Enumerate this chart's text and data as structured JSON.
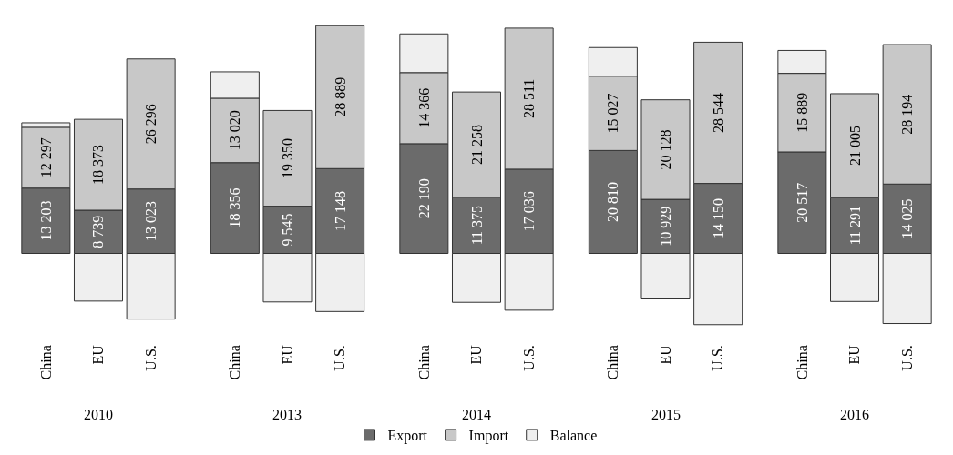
{
  "chart_data": {
    "type": "bar",
    "stacked": true,
    "categories": [
      "China",
      "EU",
      "U.S.",
      "China",
      "EU",
      "U.S.",
      "China",
      "EU",
      "U.S.",
      "China",
      "EU",
      "U.S.",
      "China",
      "EU",
      "U.S."
    ],
    "annotations": [
      "2010",
      "2013",
      "2014",
      "2015",
      "2016"
    ],
    "series": [
      {
        "name": "Export",
        "color": "#6b6b6b",
        "values": [
          13203,
          8739,
          13023,
          18356,
          9545,
          17148,
          22190,
          11375,
          17036,
          20810,
          10929,
          14150,
          20517,
          11291,
          14025
        ],
        "value_labels": [
          "13 203",
          "8 739",
          "13 023",
          "18 356",
          "9 545",
          "17 148",
          "22 190",
          "11 375",
          "17 036",
          "20 810",
          "10 929",
          "14 150",
          "20 517",
          "11 291",
          "14 025"
        ]
      },
      {
        "name": "Import",
        "color": "#c8c8c8",
        "values": [
          12297,
          18373,
          26296,
          13020,
          19350,
          28889,
          14366,
          21258,
          28511,
          15027,
          20128,
          28544,
          15889,
          21005,
          28194
        ],
        "value_labels": [
          "12 297",
          "18 373",
          "26 296",
          "13 020",
          "19 350",
          "28 889",
          "14 366",
          "21 258",
          "28 511",
          "15 027",
          "20 128",
          "28 544",
          "15 889",
          "21 005",
          "28 194"
        ]
      },
      {
        "name": "Balance",
        "color": "#efefef",
        "values": [
          906,
          -9634,
          -13273,
          5336,
          -9805,
          -11741,
          7824,
          -9883,
          -11475,
          5783,
          -9199,
          -14394,
          4628,
          -9714,
          -14169
        ]
      }
    ],
    "grid": false,
    "legend": "bottom"
  }
}
